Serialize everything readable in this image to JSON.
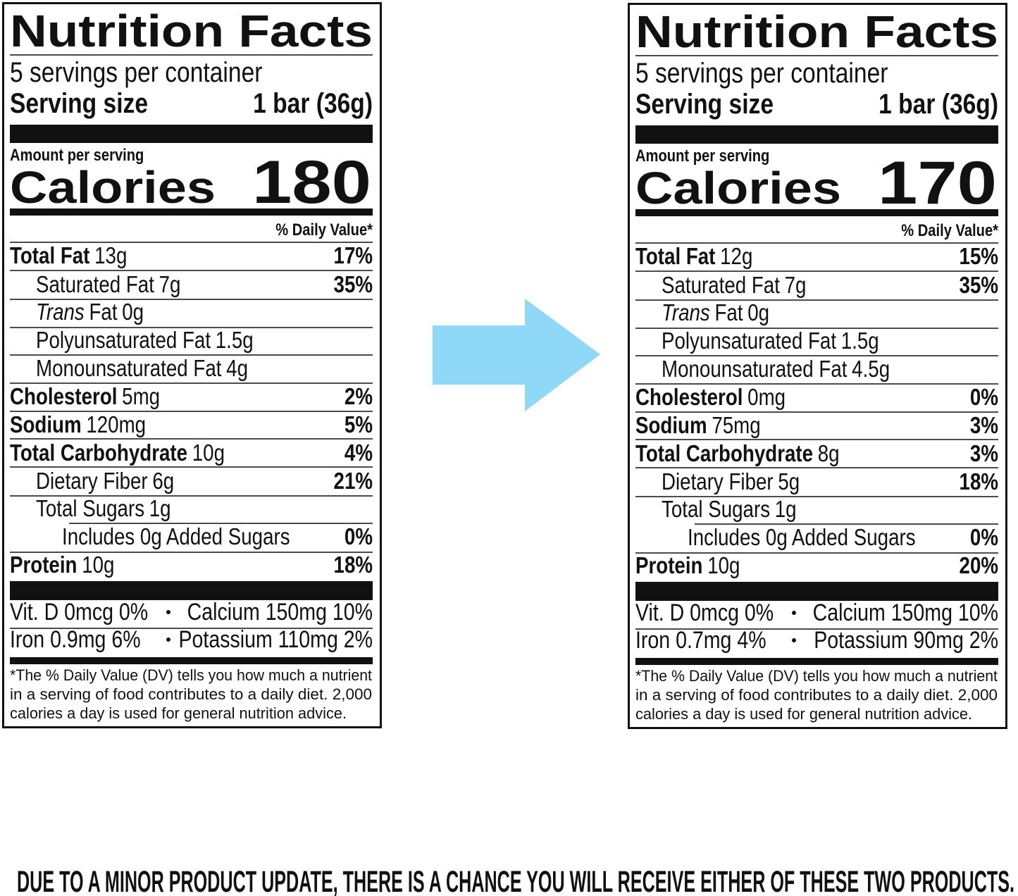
{
  "labels": [
    {
      "title": "Nutrition Facts",
      "servings": "5 servings per container",
      "serving_size_label": "Serving size",
      "serving_size_value": "1 bar (36g)",
      "amount_per_serving": "Amount per serving",
      "calories_label": "Calories",
      "calories_value": "180",
      "dv_header": "% Daily Value*",
      "rows": [
        {
          "name": "Total Fat",
          "amount": "13g",
          "dv": "17%"
        },
        {
          "name": "Saturated Fat",
          "amount": "7g",
          "dv": "35%"
        },
        {
          "name_italic": "Trans",
          "name": "Fat",
          "amount": "0g"
        },
        {
          "name": "Polyunsaturated Fat",
          "amount": "1.5g"
        },
        {
          "name": "Monounsaturated Fat",
          "amount": "4g"
        },
        {
          "name": "Cholesterol",
          "amount": "5mg",
          "dv": "2%"
        },
        {
          "name": "Sodium",
          "amount": "120mg",
          "dv": "5%"
        },
        {
          "name": "Total Carbohydrate",
          "amount": "10g",
          "dv": "4%"
        },
        {
          "name": "Dietary Fiber",
          "amount": "6g",
          "dv": "21%"
        },
        {
          "name": "Total Sugars",
          "amount": "1g"
        },
        {
          "name": "Includes 0g Added Sugars",
          "dv": "0%"
        },
        {
          "name": "Protein",
          "amount": "10g",
          "dv": "18%"
        }
      ],
      "minerals": [
        [
          "Vit. D 0mcg 0%",
          "Calcium 150mg 10%"
        ],
        [
          "Iron 0.9mg 6%",
          "Potassium 110mg 2%"
        ]
      ],
      "footnote": [
        "*The % Daily Value (DV) tells you how much a nutrient",
        "in a serving of food contributes to a daily diet. 2,000",
        "calories a day is used for general nutrition advice."
      ]
    },
    {
      "title": "Nutrition Facts",
      "servings": "5 servings per container",
      "serving_size_label": "Serving size",
      "serving_size_value": "1 bar (36g)",
      "amount_per_serving": "Amount per serving",
      "calories_label": "Calories",
      "calories_value": "170",
      "dv_header": "% Daily Value*",
      "rows": [
        {
          "name": "Total Fat",
          "amount": "12g",
          "dv": "15%"
        },
        {
          "name": "Saturated Fat",
          "amount": "7g",
          "dv": "35%"
        },
        {
          "name_italic": "Trans",
          "name": "Fat",
          "amount": "0g"
        },
        {
          "name": "Polyunsaturated Fat",
          "amount": "1.5g"
        },
        {
          "name": "Monounsaturated Fat",
          "amount": "4.5g"
        },
        {
          "name": "Cholesterol",
          "amount": "0mg",
          "dv": "0%"
        },
        {
          "name": "Sodium",
          "amount": "75mg",
          "dv": "3%"
        },
        {
          "name": "Total Carbohydrate",
          "amount": "8g",
          "dv": "3%"
        },
        {
          "name": "Dietary Fiber",
          "amount": "5g",
          "dv": "18%"
        },
        {
          "name": "Total Sugars",
          "amount": "1g"
        },
        {
          "name": "Includes 0g Added Sugars",
          "dv": "0%"
        },
        {
          "name": "Protein",
          "amount": "10g",
          "dv": "20%"
        }
      ],
      "minerals": [
        [
          "Vit. D 0mcg 0%",
          "Calcium 150mg 10%"
        ],
        [
          "Iron 0.7mg 4%",
          "Potassium 90mg 2%"
        ]
      ],
      "footnote": [
        "*The % Daily Value (DV) tells you how much a nutrient",
        "in a serving of food contributes to a daily diet. 2,000",
        "calories a day is used for general nutrition advice."
      ]
    }
  ],
  "notice": "DUE TO A MINOR PRODUCT UPDATE, THERE IS A CHANCE YOU WILL RECEIVE EITHER OF THESE TWO PRODUCTS."
}
